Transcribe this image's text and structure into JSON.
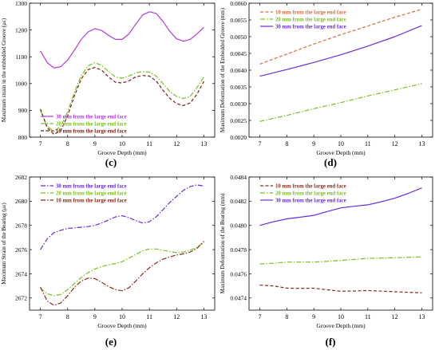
{
  "chart_data": [
    {
      "panel_label": "(c)",
      "type": "line",
      "xlabel": "Groove Depth (mm)",
      "ylabel": "Maximum strain in the embedded Groove (με)",
      "xlim": [
        6.6,
        13.4
      ],
      "ylim": [
        800,
        1300
      ],
      "xticks": [
        7,
        8,
        9,
        10,
        11,
        12,
        13
      ],
      "yticks": [
        800,
        900,
        1000,
        1100,
        1200,
        1300
      ],
      "grid": false,
      "legend_position": "bottom-left",
      "series": [
        {
          "name": "30 mm from the large end face",
          "color": "#b23cdc",
          "dash": "solid",
          "x": [
            7,
            7.25,
            7.5,
            7.75,
            8,
            8.25,
            8.5,
            8.75,
            9,
            9.25,
            9.5,
            9.75,
            10,
            10.25,
            10.5,
            10.75,
            11,
            11.25,
            11.5,
            11.75,
            12,
            12.25,
            12.5,
            12.75,
            13
          ],
          "values": [
            1122,
            1078,
            1058,
            1063,
            1088,
            1125,
            1165,
            1193,
            1205,
            1198,
            1180,
            1165,
            1165,
            1185,
            1222,
            1256,
            1268,
            1262,
            1232,
            1195,
            1167,
            1158,
            1165,
            1185,
            1210
          ]
        },
        {
          "name": "20 mm from the large end face",
          "color": "#7bbf1f",
          "dash": "dashdot",
          "x": [
            7,
            7.25,
            7.5,
            7.75,
            8,
            8.25,
            8.5,
            8.75,
            9,
            9.25,
            9.5,
            9.75,
            10,
            10.25,
            10.5,
            10.75,
            11,
            11.25,
            11.5,
            11.75,
            12,
            12.25,
            12.5,
            12.75,
            13
          ],
          "values": [
            900,
            840,
            822,
            840,
            895,
            968,
            1030,
            1066,
            1078,
            1068,
            1045,
            1025,
            1020,
            1028,
            1040,
            1045,
            1043,
            1028,
            1000,
            970,
            952,
            944,
            952,
            985,
            1025
          ]
        },
        {
          "name": "10 mm from the large end face",
          "color": "#7a1f14",
          "dash": "dashed",
          "x": [
            7,
            7.25,
            7.5,
            7.75,
            8,
            8.25,
            8.5,
            8.75,
            9,
            9.25,
            9.5,
            9.75,
            10,
            10.25,
            10.5,
            10.75,
            11,
            11.25,
            11.5,
            11.75,
            12,
            12.25,
            12.5,
            12.75,
            13
          ],
          "values": [
            905,
            835,
            810,
            825,
            880,
            955,
            1018,
            1052,
            1060,
            1050,
            1025,
            1005,
            1002,
            1010,
            1025,
            1030,
            1028,
            1010,
            975,
            945,
            925,
            918,
            928,
            960,
            1008
          ]
        }
      ]
    },
    {
      "panel_label": "(d)",
      "type": "line",
      "xlabel": "Groove Depth (mm)",
      "ylabel": "Maximum Deformation of the Embedded Groove (mm)",
      "xlim": [
        6.6,
        13.4
      ],
      "ylim": [
        0.002,
        0.006
      ],
      "xticks": [
        7,
        8,
        9,
        10,
        11,
        12,
        13
      ],
      "yticks": [
        0.002,
        0.0025,
        0.003,
        0.0035,
        0.004,
        0.0045,
        0.005,
        0.0055,
        0.006
      ],
      "ytick_labels": [
        "0.0020",
        "0.0025",
        "0.0030",
        "0.0035",
        "0.0040",
        "0.0045",
        "0.0050",
        "0.0055",
        "0.0060"
      ],
      "grid": false,
      "legend_position": "top-left",
      "series": [
        {
          "name": "10 mm from the large end face",
          "color": "#e06a3a",
          "dash": "dashed",
          "x": [
            7,
            8,
            9,
            10,
            11,
            12,
            13
          ],
          "values": [
            0.00418,
            0.00448,
            0.00478,
            0.00506,
            0.00532,
            0.00558,
            0.00582
          ]
        },
        {
          "name": "20 mm from the large end face",
          "color": "#7bbf1f",
          "dash": "dashdot",
          "x": [
            7,
            8,
            9,
            10,
            11,
            12,
            13
          ],
          "values": [
            0.00247,
            0.00265,
            0.00285,
            0.00303,
            0.00323,
            0.00341,
            0.0036
          ]
        },
        {
          "name": "30 mm from the large end face",
          "color": "#6a2bd9",
          "dash": "solid",
          "x": [
            7,
            8,
            9,
            10,
            11,
            12,
            13
          ],
          "values": [
            0.00382,
            0.00402,
            0.00423,
            0.00446,
            0.00472,
            0.005,
            0.00533
          ]
        }
      ]
    },
    {
      "panel_label": "(e)",
      "type": "line",
      "xlabel": "Groove Depth (mm)",
      "ylabel": "Maximum Strain of the Bearing (με)",
      "xlim": [
        6.6,
        13.4
      ],
      "ylim": [
        2671,
        2682
      ],
      "xticks": [
        7,
        8,
        9,
        10,
        11,
        12,
        13
      ],
      "yticks": [
        2672,
        2674,
        2676,
        2678,
        2680,
        2682
      ],
      "grid": false,
      "legend_position": "top-left",
      "series": [
        {
          "name": "30 mm from the large end face",
          "color": "#6a2bd9",
          "dash": "dashdot",
          "x": [
            7,
            7.25,
            7.5,
            7.75,
            8,
            8.25,
            8.5,
            8.75,
            9,
            9.25,
            9.5,
            9.75,
            10,
            10.25,
            10.5,
            10.75,
            11,
            11.25,
            11.5,
            11.75,
            12,
            12.25,
            12.5,
            12.75,
            13
          ],
          "values": [
            2676.0,
            2676.9,
            2677.4,
            2677.6,
            2677.75,
            2677.8,
            2677.85,
            2677.9,
            2678.0,
            2678.2,
            2678.45,
            2678.7,
            2678.8,
            2678.65,
            2678.4,
            2678.2,
            2678.3,
            2678.7,
            2679.3,
            2679.9,
            2680.4,
            2680.9,
            2681.2,
            2681.35,
            2681.25
          ]
        },
        {
          "name": "20 mm from the large end face",
          "color": "#7bbf1f",
          "dash": "dashdot",
          "x": [
            7,
            7.25,
            7.5,
            7.75,
            8,
            8.25,
            8.5,
            8.75,
            9,
            9.25,
            9.5,
            9.75,
            10,
            10.25,
            10.5,
            10.75,
            11,
            11.25,
            11.5,
            11.75,
            12,
            12.25,
            12.5,
            12.75,
            13
          ],
          "values": [
            2672.8,
            2672.35,
            2672.2,
            2672.3,
            2672.7,
            2673.2,
            2673.7,
            2674.1,
            2674.4,
            2674.6,
            2674.75,
            2674.85,
            2675.0,
            2675.3,
            2675.6,
            2675.9,
            2676.05,
            2676.05,
            2675.95,
            2675.85,
            2675.75,
            2675.8,
            2675.95,
            2676.2,
            2676.6
          ]
        },
        {
          "name": "10 mm from the large end face",
          "color": "#8b2a1a",
          "dash": "dashdot",
          "x": [
            7,
            7.25,
            7.5,
            7.75,
            8,
            8.25,
            8.5,
            8.75,
            9,
            9.25,
            9.5,
            9.75,
            10,
            10.25,
            10.5,
            10.75,
            11,
            11.25,
            11.5,
            11.75,
            12,
            12.25,
            12.5,
            12.75,
            13
          ],
          "values": [
            2672.9,
            2671.75,
            2671.4,
            2671.6,
            2672.2,
            2672.9,
            2673.4,
            2673.65,
            2673.6,
            2673.3,
            2672.95,
            2672.7,
            2672.6,
            2672.85,
            2673.4,
            2674.0,
            2674.5,
            2674.9,
            2675.2,
            2675.4,
            2675.55,
            2675.65,
            2675.8,
            2676.1,
            2676.7
          ]
        }
      ]
    },
    {
      "panel_label": "(f)",
      "type": "line",
      "xlabel": "Groove Depth (mm)",
      "ylabel": "Maximum Deformation of the Bearing (mm)",
      "xlim": [
        6.6,
        13.4
      ],
      "ylim": [
        0.0473,
        0.0484
      ],
      "xticks": [
        7,
        8,
        9,
        10,
        11,
        12,
        13
      ],
      "yticks": [
        0.0474,
        0.0476,
        0.0478,
        0.048,
        0.0482,
        0.0484
      ],
      "ytick_labels": [
        "0.0474",
        "0.0476",
        "0.0478",
        "0.0480",
        "0.0482",
        "0.0484"
      ],
      "grid": false,
      "legend_position": "top-left",
      "series": [
        {
          "name": "10 mm from the large end face",
          "color": "#8b2a1a",
          "dash": "dashed",
          "x": [
            7,
            7.5,
            8,
            8.5,
            9,
            9.5,
            10,
            10.5,
            11,
            11.5,
            12,
            12.5,
            13
          ],
          "values": [
            0.047507,
            0.0475,
            0.047482,
            0.04748,
            0.047481,
            0.047468,
            0.047456,
            0.047458,
            0.047462,
            0.047457,
            0.047452,
            0.047447,
            0.047443
          ]
        },
        {
          "name": "20 mm from the large end face",
          "color": "#7bbf1f",
          "dash": "dashdot",
          "x": [
            7,
            7.5,
            8,
            8.5,
            9,
            9.5,
            10,
            10.5,
            11,
            11.5,
            12,
            12.5,
            13
          ],
          "values": [
            0.047682,
            0.047687,
            0.047697,
            0.047697,
            0.047697,
            0.047703,
            0.047711,
            0.047719,
            0.047728,
            0.04773,
            0.047733,
            0.047737,
            0.04774
          ]
        },
        {
          "name": "30 mm from the large end face",
          "color": "#6a2bd9",
          "dash": "solid",
          "x": [
            7,
            7.5,
            8,
            8.5,
            9,
            9.5,
            10,
            10.5,
            11,
            11.5,
            12,
            12.5,
            13
          ],
          "values": [
            0.048,
            0.04803,
            0.048054,
            0.048068,
            0.048083,
            0.048115,
            0.048145,
            0.048158,
            0.04817,
            0.048195,
            0.048225,
            0.048265,
            0.04831
          ]
        }
      ]
    }
  ]
}
